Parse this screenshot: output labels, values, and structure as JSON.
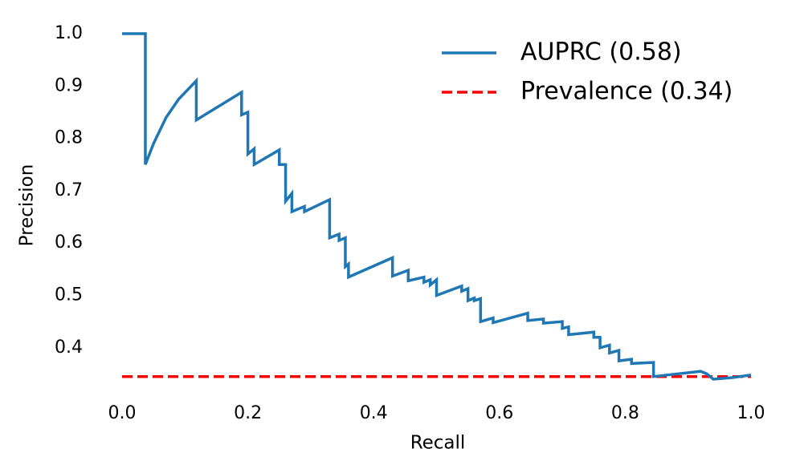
{
  "chart_data": {
    "type": "line",
    "xlabel": "Recall",
    "ylabel": "Precision",
    "xlim": [
      0,
      1
    ],
    "ylim": [
      0.33,
      1.0
    ],
    "xticks": [
      {
        "value": 0,
        "label": "0.0"
      },
      0.2,
      0.4,
      0.6,
      0.8,
      {
        "value": 1,
        "label": "1.0"
      }
    ],
    "yticks": [
      0.4,
      0.5,
      0.6,
      0.7,
      0.8,
      0.9,
      {
        "value": 1,
        "label": "1.0"
      }
    ],
    "legend": "upper right",
    "series": [
      {
        "name": "AUPRC (0.58)",
        "color": "#1f77b4",
        "linestyle": "solid",
        "x": [
          0,
          0.037,
          0.037,
          0.05,
          0.07,
          0.09,
          0.118,
          0.118,
          0.19,
          0.19,
          0.2,
          0.2,
          0.21,
          0.21,
          0.25,
          0.25,
          0.26,
          0.26,
          0.27,
          0.27,
          0.29,
          0.29,
          0.33,
          0.33,
          0.345,
          0.345,
          0.355,
          0.355,
          0.36,
          0.36,
          0.43,
          0.43,
          0.455,
          0.455,
          0.48,
          0.48,
          0.49,
          0.49,
          0.5,
          0.5,
          0.54,
          0.54,
          0.55,
          0.55,
          0.56,
          0.56,
          0.57,
          0.57,
          0.59,
          0.59,
          0.645,
          0.645,
          0.67,
          0.67,
          0.7,
          0.7,
          0.71,
          0.71,
          0.75,
          0.75,
          0.76,
          0.76,
          0.775,
          0.775,
          0.79,
          0.79,
          0.81,
          0.81,
          0.845,
          0.845,
          0.92,
          0.93,
          0.94,
          0.97,
          1.0
        ],
        "values": [
          1.0,
          1.0,
          0.75,
          0.79,
          0.84,
          0.875,
          0.91,
          0.835,
          0.888,
          0.845,
          0.85,
          0.77,
          0.78,
          0.75,
          0.778,
          0.75,
          0.75,
          0.68,
          0.695,
          0.66,
          0.67,
          0.66,
          0.683,
          0.61,
          0.617,
          0.605,
          0.61,
          0.555,
          0.56,
          0.535,
          0.572,
          0.537,
          0.548,
          0.528,
          0.535,
          0.525,
          0.53,
          0.52,
          0.53,
          0.5,
          0.518,
          0.508,
          0.513,
          0.49,
          0.495,
          0.49,
          0.494,
          0.45,
          0.457,
          0.448,
          0.466,
          0.452,
          0.455,
          0.447,
          0.45,
          0.437,
          0.44,
          0.425,
          0.43,
          0.42,
          0.42,
          0.4,
          0.405,
          0.39,
          0.395,
          0.375,
          0.378,
          0.37,
          0.372,
          0.345,
          0.355,
          0.35,
          0.34,
          0.343,
          0.348
        ]
      },
      {
        "name": "Prevalence (0.34)",
        "color": "#ff0000",
        "linestyle": "dashed",
        "x": [
          0,
          1
        ],
        "values": [
          0.345,
          0.345
        ]
      }
    ]
  }
}
